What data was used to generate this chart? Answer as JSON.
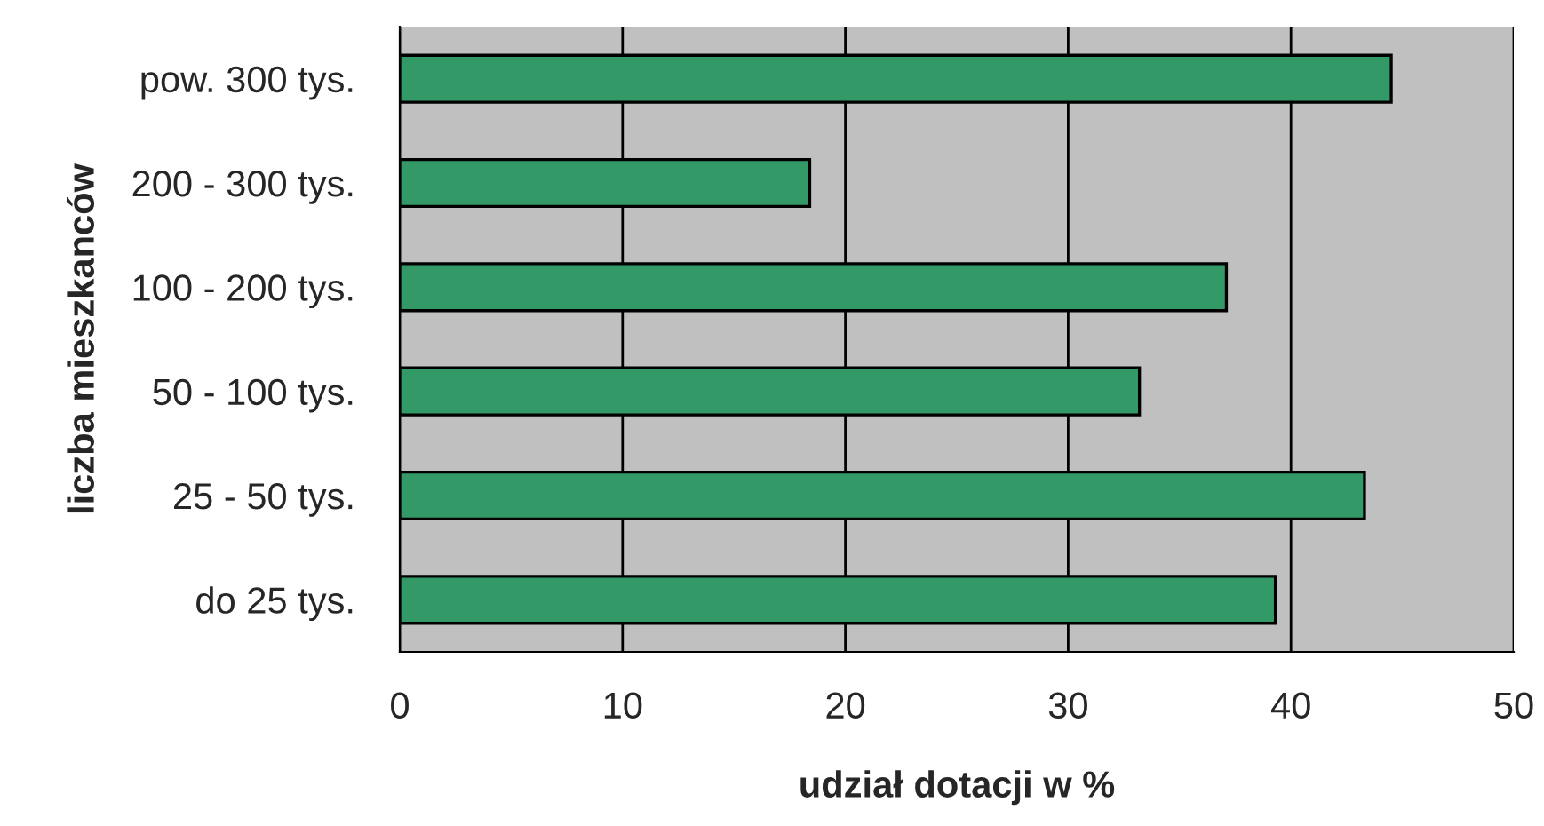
{
  "chart_data": {
    "type": "bar",
    "orientation": "horizontal",
    "categories": [
      "pow. 300 tys.",
      "200 - 300 tys.",
      "100 - 200 tys.",
      "50 - 100 tys.",
      "25 - 50 tys.",
      "do 25 tys."
    ],
    "values": [
      44.5,
      18.4,
      37.1,
      33.2,
      43.3,
      39.3
    ],
    "color": "#339966",
    "xlim": [
      0,
      50
    ],
    "xticks": [
      0,
      10,
      20,
      30,
      40,
      50
    ],
    "grid": "x",
    "xlabel": "udział dotacji w %",
    "ylabel": "liczba mieszkanców"
  }
}
